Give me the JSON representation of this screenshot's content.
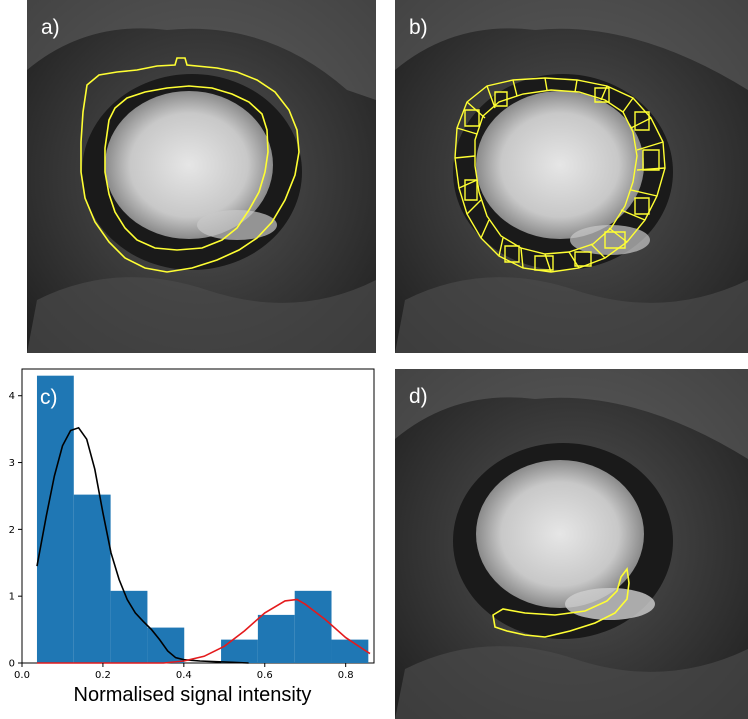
{
  "panels": {
    "a": {
      "label": "a)"
    },
    "b": {
      "label": "b)"
    },
    "c": {
      "label": "c)"
    },
    "d": {
      "label": "d)"
    }
  },
  "colors": {
    "histogram_fill": "#1f77b4",
    "kde_low": "#000000",
    "kde_high": "#e41a1c",
    "contour": "#ffff33"
  },
  "chart_data": {
    "type": "bar",
    "label": "c)",
    "title": "",
    "xlabel": "Normalised signal intensity",
    "ylabel": "",
    "xlim": [
      0.0,
      0.87
    ],
    "ylim": [
      0,
      4.4
    ],
    "x_ticks": [
      "0.0",
      "0.2",
      "0.4",
      "0.6",
      "0.8"
    ],
    "y_ticks": [
      "0",
      "1",
      "2",
      "3",
      "4"
    ],
    "grid": false,
    "legend": "none",
    "histogram": {
      "bin_edges": [
        0.037,
        0.128,
        0.219,
        0.31,
        0.401,
        0.492,
        0.583,
        0.674,
        0.765,
        0.856
      ],
      "values": [
        4.3,
        2.52,
        1.08,
        0.53,
        0.0,
        0.35,
        0.72,
        1.08,
        0.35
      ]
    },
    "series": [
      {
        "color": "#000000",
        "x": [
          0.037,
          0.06,
          0.08,
          0.1,
          0.12,
          0.14,
          0.16,
          0.18,
          0.2,
          0.22,
          0.24,
          0.26,
          0.28,
          0.3,
          0.32,
          0.34,
          0.36,
          0.38,
          0.4,
          0.44,
          0.48,
          0.52,
          0.56
        ],
        "y": [
          1.45,
          2.2,
          2.8,
          3.25,
          3.48,
          3.52,
          3.35,
          2.9,
          2.25,
          1.65,
          1.25,
          0.95,
          0.75,
          0.62,
          0.5,
          0.35,
          0.18,
          0.08,
          0.05,
          0.03,
          0.02,
          0.01,
          0.0
        ]
      },
      {
        "color": "#e41a1c",
        "x": [
          0.037,
          0.35,
          0.4,
          0.45,
          0.5,
          0.55,
          0.6,
          0.65,
          0.68,
          0.7,
          0.75,
          0.8,
          0.85,
          0.86
        ],
        "y": [
          0.0,
          0.0,
          0.03,
          0.1,
          0.25,
          0.48,
          0.75,
          0.93,
          0.95,
          0.88,
          0.65,
          0.38,
          0.18,
          0.14
        ]
      }
    ]
  }
}
